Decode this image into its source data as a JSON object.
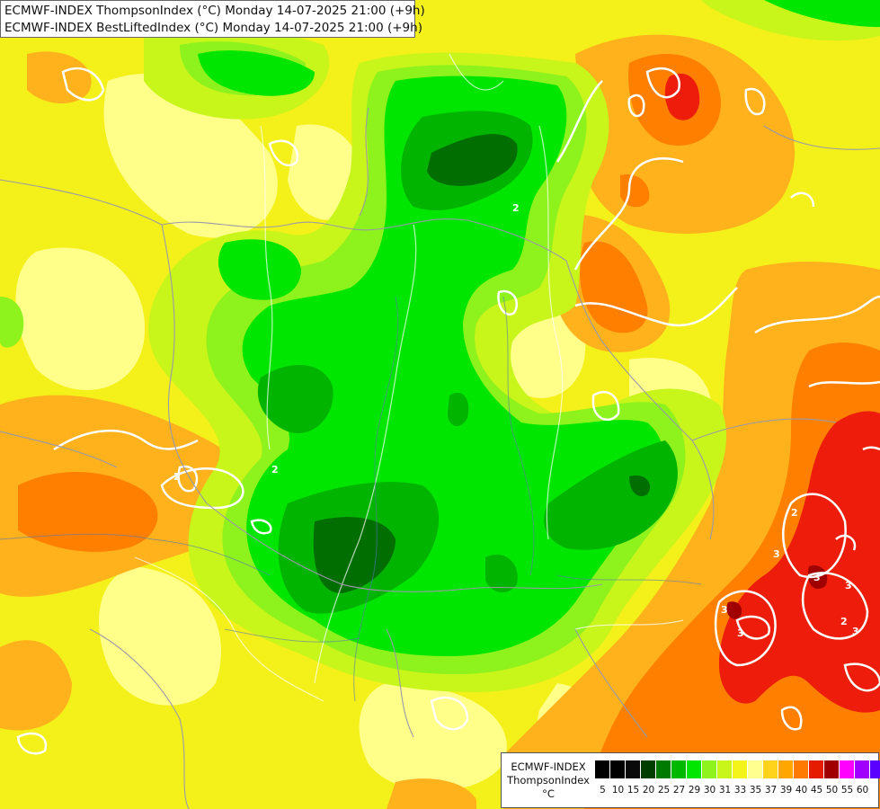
{
  "titles": {
    "line1": "ECMWF-INDEX ThompsonIndex (°C) Monday 14-07-2025 21:00 (+9h)",
    "line2": "ECMWF-INDEX BestLiftedIndex (°C) Monday 14-07-2025 21:00 (+9h)"
  },
  "legend": {
    "line1": "ECMWF-INDEX",
    "line2": "ThompsonIndex",
    "line3": "°C",
    "classes": [
      {
        "label": "5",
        "color": "#000000"
      },
      {
        "label": "10",
        "color": "#000000"
      },
      {
        "label": "15",
        "color": "#0a0a0a"
      },
      {
        "label": "20",
        "color": "#003d00"
      },
      {
        "label": "25",
        "color": "#007a00"
      },
      {
        "label": "27",
        "color": "#00b800"
      },
      {
        "label": "29",
        "color": "#00e600"
      },
      {
        "label": "30",
        "color": "#8ef21c"
      },
      {
        "label": "31",
        "color": "#c8f51a"
      },
      {
        "label": "33",
        "color": "#f4f31a"
      },
      {
        "label": "35",
        "color": "#ffff90"
      },
      {
        "label": "37",
        "color": "#ffd21c"
      },
      {
        "label": "39",
        "color": "#ffa600"
      },
      {
        "label": "40",
        "color": "#ff7a00"
      },
      {
        "label": "45",
        "color": "#e61c00"
      },
      {
        "label": "50",
        "color": "#a00000"
      },
      {
        "label": "55",
        "color": "#ff00ff"
      },
      {
        "label": "60",
        "color": "#a000ff"
      },
      {
        "label": "",
        "color": "#5a00ff"
      },
      {
        "label": "",
        "color": "#0000ff"
      }
    ]
  },
  "contour_labels": [
    "2",
    "2",
    "2",
    "3",
    "3",
    "2",
    "3",
    "3",
    "3",
    "2",
    "3"
  ]
}
